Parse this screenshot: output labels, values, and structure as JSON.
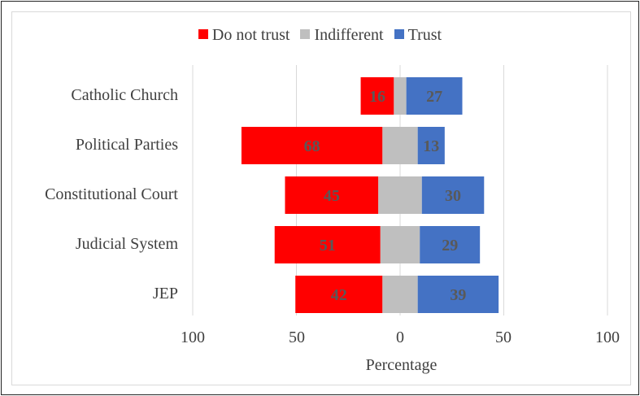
{
  "chart_data": {
    "type": "bar",
    "orientation": "horizontal",
    "layout": "diverging-stacked",
    "categories": [
      "Catholic Church",
      "Political Parties",
      "Constitutional Court",
      "Judicial System",
      "JEP"
    ],
    "series": [
      {
        "name": "Do not trust",
        "color": "#ff0000",
        "values": [
          16,
          68,
          45,
          51,
          42
        ]
      },
      {
        "name": "Indifferent",
        "color": "#bfbfbf",
        "values": [
          6,
          17,
          21,
          19,
          17
        ]
      },
      {
        "name": "Trust",
        "color": "#4472c4",
        "values": [
          27,
          13,
          30,
          29,
          39
        ]
      }
    ],
    "xlabel": "Percentage",
    "x_ticks": [
      "100",
      "50",
      "0",
      "50",
      "100"
    ],
    "xlim": [
      -100,
      100
    ],
    "legend_position": "top",
    "grid": true
  }
}
